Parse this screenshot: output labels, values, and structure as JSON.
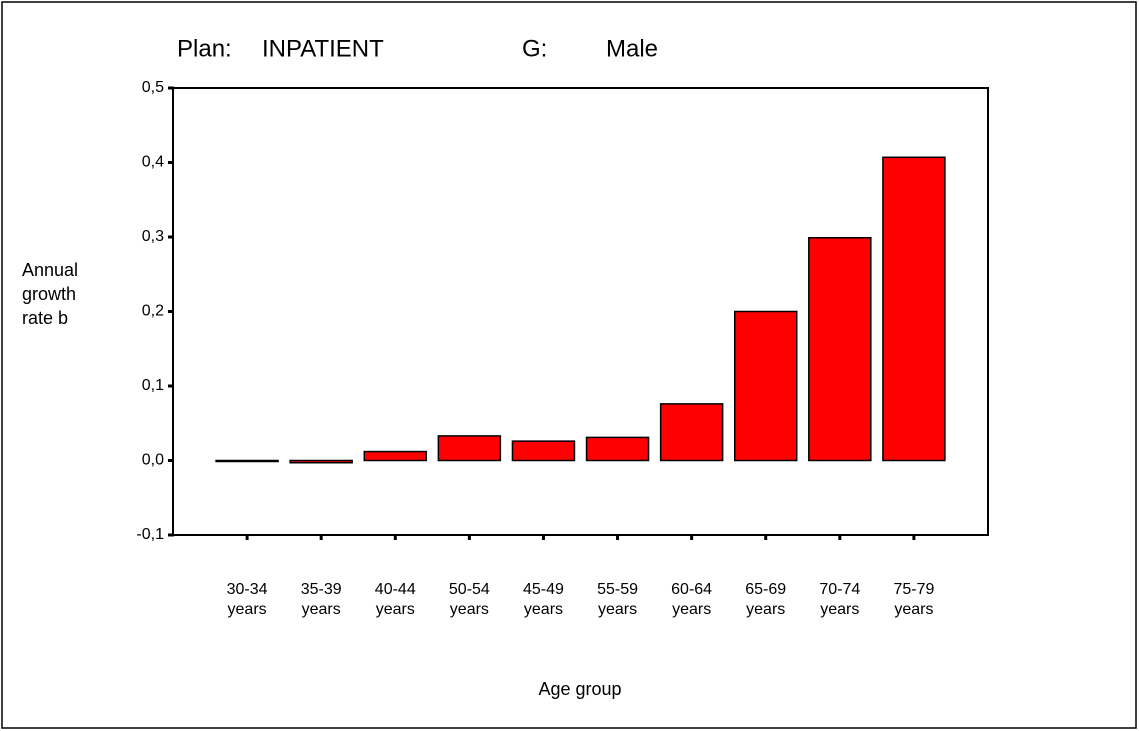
{
  "chart_data": {
    "type": "bar",
    "title_parts": [
      "Plan:",
      "INPATIENT",
      "G:",
      "Male"
    ],
    "y_label": "Annual growth rate b",
    "x_label": "Age group",
    "categories": [
      "30-34 years",
      "35-39 years",
      "40-44 years",
      "50-54 years",
      "45-49 years",
      "55-59 years",
      "60-64 years",
      "65-69 years",
      "70-74 years",
      "75-79 years"
    ],
    "values": [
      -0.001,
      -0.003,
      0.012,
      0.033,
      0.026,
      0.031,
      0.076,
      0.2,
      0.299,
      0.407
    ],
    "color": "#ff0000",
    "ylim": [
      -0.1,
      0.5
    ],
    "yticks": [
      {
        "value": -0.1,
        "label": "-0,1"
      },
      {
        "value": 0,
        "label": "0,0"
      },
      {
        "value": 0.1,
        "label": "0,1"
      },
      {
        "value": 0.2,
        "label": "0,2"
      },
      {
        "value": 0.3,
        "label": "0,3"
      },
      {
        "value": 0.4,
        "label": "0,4"
      },
      {
        "value": 0.5,
        "label": "0,5"
      }
    ]
  }
}
